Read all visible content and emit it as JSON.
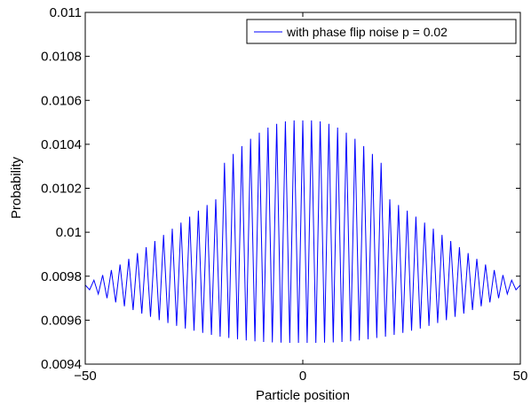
{
  "chart_data": {
    "type": "line",
    "title": "",
    "xlabel": "Particle position",
    "ylabel": "Probability",
    "xlim": [
      -50,
      50
    ],
    "ylim": [
      0.0094,
      0.011
    ],
    "x_ticks": [
      -50,
      0,
      50
    ],
    "x_tick_labels": [
      "−50",
      "0",
      "50"
    ],
    "y_ticks": [
      0.0094,
      0.0096,
      0.0098,
      0.01,
      0.0102,
      0.0104,
      0.0106,
      0.0108,
      0.011
    ],
    "y_tick_labels": [
      "0.0094",
      "0.0096",
      "0.0098",
      "0.01",
      "0.0102",
      "0.0104",
      "0.0106",
      "0.0108",
      "0.011"
    ],
    "grid": false,
    "legend_position": "top-right",
    "line_color": "#0000ff",
    "series": [
      {
        "name": "with phase flip noise p = 0.02",
        "x": [
          -50,
          -49,
          -48,
          -47,
          -46,
          -45,
          -44,
          -43,
          -42,
          -41,
          -40,
          -39,
          -38,
          -37,
          -36,
          -35,
          -34,
          -33,
          -32,
          -31,
          -30,
          -29,
          -28,
          -27,
          -26,
          -25,
          -24,
          -23,
          -22,
          -21,
          -20,
          -19,
          -18,
          -17,
          -16,
          -15,
          -14,
          -13,
          -12,
          -11,
          -10,
          -9,
          -8,
          -7,
          -6,
          -5,
          -4,
          -3,
          -2,
          -1,
          0,
          1,
          2,
          3,
          4,
          5,
          6,
          7,
          8,
          9,
          10,
          11,
          12,
          13,
          14,
          15,
          16,
          17,
          18,
          19,
          20,
          21,
          22,
          23,
          24,
          25,
          26,
          27,
          28,
          29,
          30,
          31,
          32,
          33,
          34,
          35,
          36,
          37,
          38,
          39,
          40,
          41,
          42,
          43,
          44,
          45,
          46,
          47,
          48,
          49,
          50
        ],
        "y": [
          0.00976,
          0.009738,
          0.009782,
          0.009719,
          0.009805,
          0.0097,
          0.009828,
          0.009681,
          0.009853,
          0.009663,
          0.009879,
          0.009646,
          0.009905,
          0.00963,
          0.009932,
          0.009615,
          0.00996,
          0.0096,
          0.009988,
          0.009587,
          0.010016,
          0.009574,
          0.010044,
          0.009562,
          0.010071,
          0.009552,
          0.010098,
          0.009542,
          0.010124,
          0.009533,
          0.01015,
          0.009525,
          0.010316,
          0.009519,
          0.010356,
          0.009513,
          0.010392,
          0.009508,
          0.010425,
          0.009504,
          0.010453,
          0.009501,
          0.010476,
          0.009499,
          0.010493,
          0.009498,
          0.010504,
          0.009497,
          0.010509,
          0.009497,
          0.010509,
          0.009497,
          0.010509,
          0.009497,
          0.010504,
          0.009498,
          0.010493,
          0.009499,
          0.010476,
          0.009501,
          0.010453,
          0.009504,
          0.010425,
          0.009508,
          0.010392,
          0.009513,
          0.010356,
          0.009519,
          0.010316,
          0.009525,
          0.01015,
          0.009533,
          0.010124,
          0.009542,
          0.010098,
          0.009552,
          0.010071,
          0.009562,
          0.010044,
          0.009574,
          0.010016,
          0.009587,
          0.009988,
          0.0096,
          0.00996,
          0.009615,
          0.009932,
          0.00963,
          0.009905,
          0.009646,
          0.009879,
          0.009663,
          0.009853,
          0.009681,
          0.009828,
          0.0097,
          0.009805,
          0.009719,
          0.009782,
          0.009738,
          0.00976
        ]
      }
    ]
  }
}
